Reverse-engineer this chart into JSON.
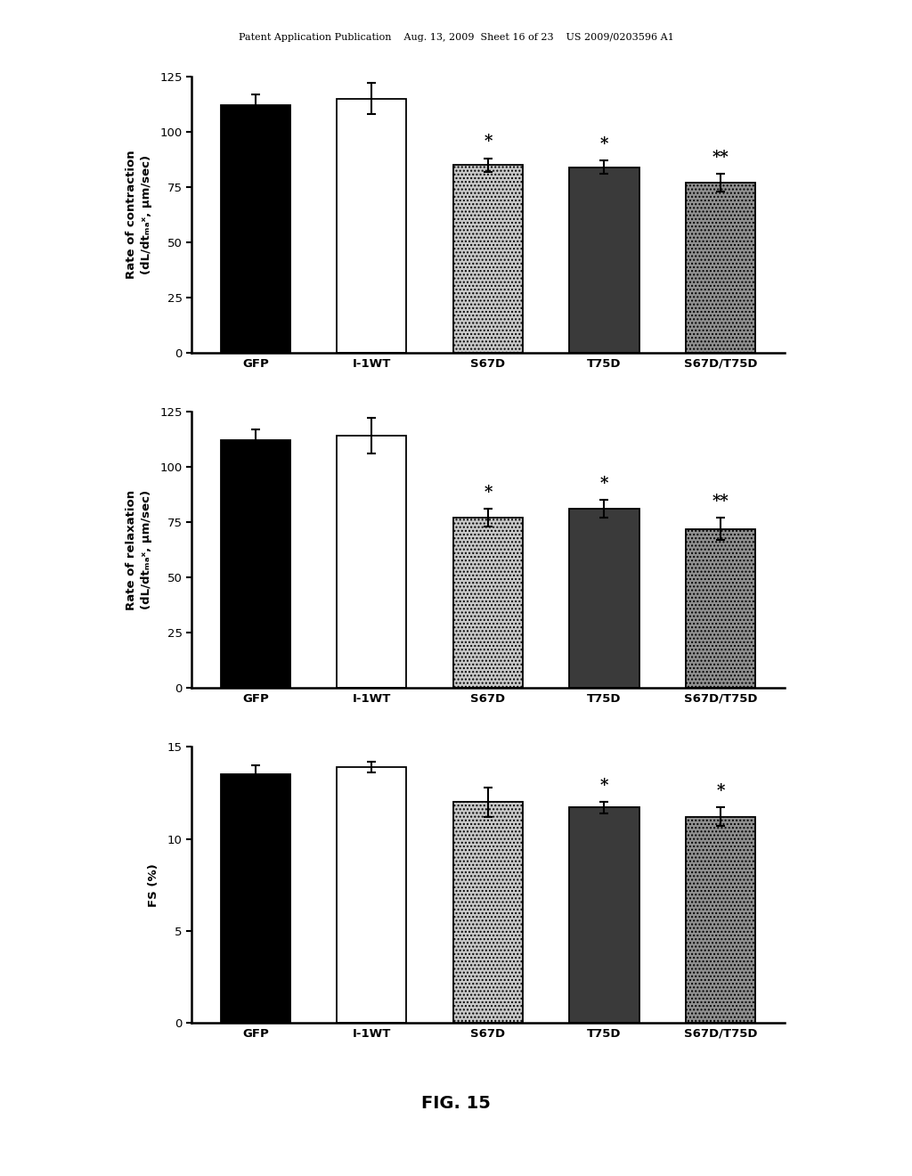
{
  "categories": [
    "GFP",
    "I-1WT",
    "S67D",
    "T75D",
    "S67D/T75D"
  ],
  "chart1": {
    "ylabel_line1": "Rate of contraction",
    "ylabel_line2": "(dL/dtₘₐˣ, μm/sec)",
    "values": [
      112,
      115,
      85,
      84,
      77
    ],
    "errors": [
      5,
      7,
      3,
      3,
      4
    ],
    "ylim": [
      0,
      125
    ],
    "yticks": [
      0,
      25,
      50,
      75,
      100,
      125
    ],
    "significance": [
      "",
      "",
      "*",
      "*",
      "**"
    ]
  },
  "chart2": {
    "ylabel_line1": "Rate of relaxation",
    "ylabel_line2": "(dL/dtₘₐˣ, μm/sec)",
    "values": [
      112,
      114,
      77,
      81,
      72
    ],
    "errors": [
      5,
      8,
      4,
      4,
      5
    ],
    "ylim": [
      0,
      125
    ],
    "yticks": [
      0,
      25,
      50,
      75,
      100,
      125
    ],
    "significance": [
      "",
      "",
      "*",
      "*",
      "**"
    ]
  },
  "chart3": {
    "ylabel_line1": "FS (%)",
    "ylabel_line2": "",
    "values": [
      13.5,
      13.9,
      12.0,
      11.7,
      11.2
    ],
    "errors": [
      0.5,
      0.3,
      0.8,
      0.3,
      0.5
    ],
    "ylim": [
      0,
      15
    ],
    "yticks": [
      0,
      5,
      10,
      15
    ],
    "significance": [
      "",
      "",
      "",
      "*",
      "*"
    ]
  },
  "bar_colors": [
    "#000000",
    "#ffffff",
    "#c8c8c8",
    "#3a3a3a",
    "#909090"
  ],
  "bar_hatches": [
    "",
    "",
    "....",
    "",
    "...."
  ],
  "bar_edgecolor": "#000000",
  "bar_width": 0.6,
  "background_color": "#ffffff",
  "header_text": "Patent Application Publication    Aug. 13, 2009  Sheet 16 of 23    US 2009/0203596 A1",
  "fig_label": "FIG. 15"
}
